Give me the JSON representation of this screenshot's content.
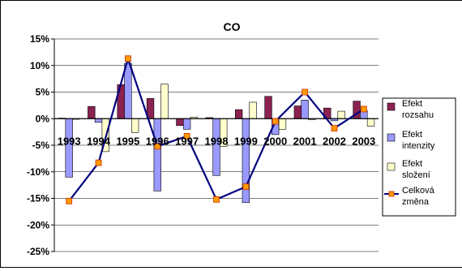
{
  "chart_data": {
    "type": "bar",
    "title": "CO",
    "categories": [
      "1993",
      "1994",
      "1995",
      "1996",
      "1997",
      "1998",
      "1999",
      "2000",
      "2001",
      "2002",
      "2003"
    ],
    "ylim": [
      -0.25,
      0.15
    ],
    "yticks": [
      0.15,
      0.1,
      0.05,
      0.0,
      -0.05,
      -0.1,
      -0.15,
      -0.2,
      -0.25
    ],
    "ytick_labels": [
      "15%",
      "10%",
      "5%",
      "0%",
      "-5%",
      "-10%",
      "-15%",
      "-20%",
      "-25%"
    ],
    "grid": true,
    "legend_position": "right",
    "series": [
      {
        "name": "Efekt rozsahu",
        "type": "bar",
        "color": "#8B2252",
        "values": [
          0.001,
          0.023,
          0.064,
          0.038,
          -0.013,
          0.002,
          0.017,
          0.042,
          0.024,
          0.02,
          0.033
        ]
      },
      {
        "name": "Efekt intenzity",
        "type": "bar",
        "color": "#9999FF",
        "values": [
          -0.11,
          -0.007,
          0.104,
          -0.136,
          -0.02,
          -0.107,
          -0.158,
          -0.03,
          0.035,
          -0.004,
          0.015
        ]
      },
      {
        "name": "Efekt složení",
        "type": "bar",
        "color": "#FFFFCC",
        "values": [
          -0.001,
          -0.062,
          -0.026,
          0.065,
          0.003,
          -0.052,
          0.031,
          -0.02,
          -0.002,
          0.014,
          -0.014
        ]
      },
      {
        "name": "Celková změna",
        "type": "line",
        "color": "#000080",
        "marker_color": "#FF9900",
        "values": [
          -0.155,
          -0.083,
          0.113,
          -0.052,
          -0.033,
          -0.152,
          -0.128,
          -0.005,
          0.05,
          -0.018,
          0.018
        ]
      }
    ]
  }
}
